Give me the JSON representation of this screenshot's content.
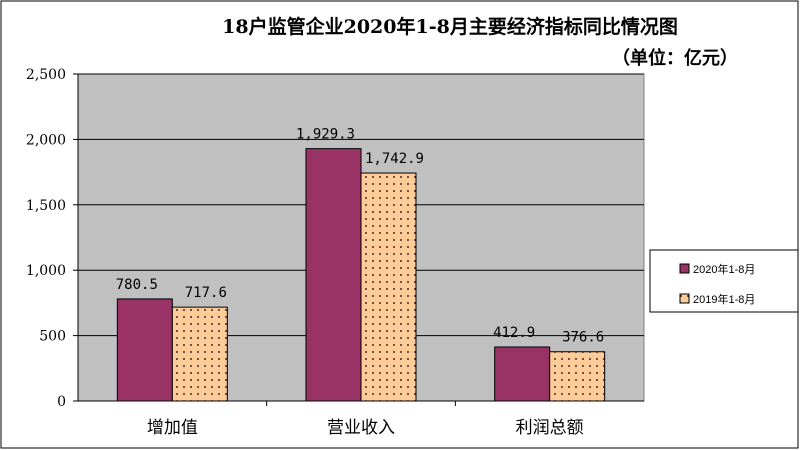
{
  "chart_data": {
    "type": "bar",
    "title": "18户监管企业2020年1-8月主要经济指标同比情况图",
    "subtitle": "（单位：亿元）",
    "categories": [
      "增加值",
      "营业收入",
      "利润总额"
    ],
    "series": [
      {
        "name": "2020年1-8月",
        "values": [
          780.5,
          1929.3,
          412.9
        ],
        "labels": [
          "780.5",
          "1,929.3",
          "412.9"
        ],
        "color": "#993366"
      },
      {
        "name": "2019年1-8月",
        "values": [
          717.6,
          1742.9,
          376.6
        ],
        "labels": [
          "717.6",
          "1,742.9",
          "376.6"
        ],
        "color": "#FFCC99"
      }
    ],
    "ylim": [
      0,
      2500
    ],
    "yticks": [
      0,
      500,
      1000,
      1500,
      2000,
      2500
    ],
    "ytick_labels": [
      "0",
      "500",
      "1,000",
      "1,500",
      "2,000",
      "2,500"
    ],
    "grid": true,
    "legend_position": "right",
    "plot_background": "#C0C0C0"
  }
}
